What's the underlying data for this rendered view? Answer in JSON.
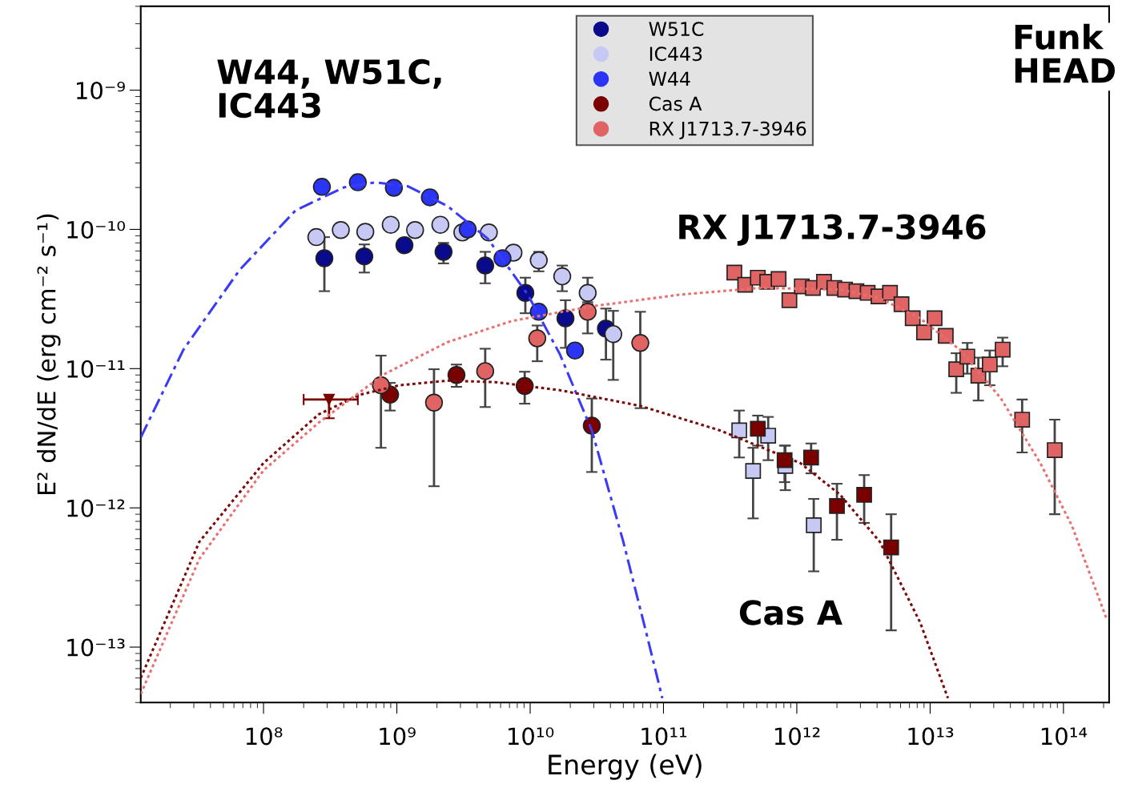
{
  "chart_data": {
    "type": "scatter",
    "xlabel": "Energy (eV)",
    "ylabel": "E² dN/dE (erg cm⁻² s⁻¹)",
    "log": "xy",
    "grid": false,
    "legend": "top",
    "xlim": [
      12000000.0,
      220000000000000.0
    ],
    "ylim": [
      4e-14,
      4e-09
    ],
    "xticks": [
      {
        "value": 100000000.0,
        "label": "10⁸"
      },
      {
        "value": 1000000000.0,
        "label": "10⁹"
      },
      {
        "value": 10000000000.0,
        "label": "10¹⁰"
      },
      {
        "value": 100000000000.0,
        "label": "10¹¹"
      },
      {
        "value": 1000000000000.0,
        "label": "10¹²"
      },
      {
        "value": 10000000000000.0,
        "label": "10¹³"
      },
      {
        "value": 100000000000000.0,
        "label": "10¹⁴"
      }
    ],
    "yticks": [
      {
        "value": 1e-13,
        "label": "10⁻¹³"
      },
      {
        "value": 1e-12,
        "label": "10⁻¹²"
      },
      {
        "value": 1e-11,
        "label": "10⁻¹¹"
      },
      {
        "value": 1e-10,
        "label": "10⁻¹⁰"
      },
      {
        "value": 1e-09,
        "label": "10⁻⁹"
      }
    ],
    "annotations": [
      "W44, W51C,\nIC443",
      "RX J1713.7-3946",
      "Cas A",
      "Funk\nHEAD"
    ],
    "series": [
      {
        "type": "line",
        "color": "#3b3bf5",
        "line_style": "dashed",
        "x": [
          12000000.0,
          25000000.0,
          66000000.0,
          174000000.0,
          400000000.0,
          690000000.0,
          1210000000.0,
          2400000000.0,
          4800000000.0,
          9600000000.0,
          16700000000.0,
          29000000000.0,
          50000000000.0,
          76000000000.0,
          98000000000.0
        ],
        "values": [
          3.2e-12,
          1.36e-11,
          5.1e-11,
          1.37e-10,
          2e-10,
          2.18e-10,
          2.04e-10,
          1.47e-10,
          8.6e-11,
          3.4e-11,
          1.27e-11,
          3.6e-12,
          5.7e-13,
          1.16e-13,
          4.3e-14
        ]
      },
      {
        "type": "line",
        "color": "#7a0a0a",
        "line_style": "dotted",
        "x": [
          12000000.0,
          33000000.0,
          100000000.0,
          260000000.0,
          530000000.0,
          1050000000.0,
          2400000000.0,
          5500000000.0,
          16700000000.0,
          67000000000.0,
          265000000000.0,
          1060000000000.0,
          2100000000000.0,
          4200000000000.0,
          8400000000000.0,
          13600000000000.0
        ],
        "values": [
          6e-14,
          5.7e-13,
          2.1e-12,
          4.7e-12,
          6.5e-12,
          7.6e-12,
          8.2e-12,
          8e-12,
          7e-12,
          5.4e-12,
          3.6e-12,
          2.1e-12,
          1.25e-12,
          5.7e-13,
          1.51e-13,
          4.3e-14
        ]
      },
      {
        "type": "line",
        "color": "#e87070",
        "line_style": "dotted",
        "x": [
          12000000.0,
          33000000.0,
          100000000.0,
          260000000.0,
          800000000.0,
          2400000000.0,
          7300000000.0,
          29000000000.0,
          133000000000.0,
          530000000000.0,
          2100000000000.0,
          4200000000000.0,
          8400000000000.0,
          16800000000000.0,
          34000000000000.0,
          67000000000000.0,
          116000000000000.0,
          210000000000000.0
        ],
        "values": [
          4.6e-14,
          4.3e-13,
          1.86e-12,
          4.1e-12,
          9.1e-12,
          1.55e-11,
          2.2e-11,
          2.8e-11,
          3.4e-11,
          3.8e-11,
          3.7e-11,
          3.2e-11,
          2.3e-11,
          1.36e-11,
          6.1e-12,
          2.1e-12,
          7.4e-13,
          1.61e-13
        ]
      },
      {
        "name": "W51C",
        "color": "#0a0a8c",
        "marker": "circle",
        "x": [
          286000000.0,
          570000000.0,
          1140000000.0,
          2240000000.0,
          4600000000.0,
          9200000000.0,
          18400000000.0,
          37000000000.0
        ],
        "values": [
          6.2e-11,
          6.4e-11,
          7.7e-11,
          6.9e-11,
          5.5e-11,
          3.5e-11,
          2.3e-11,
          1.94e-11
        ],
        "errors": [
          [
            3.6e-11,
            8.8e-11
          ],
          [
            4.9e-11,
            7.8e-11
          ],
          null,
          [
            5.7e-11,
            8e-11
          ],
          [
            4.1e-11,
            6.9e-11
          ],
          [
            2.5e-11,
            4.5e-11
          ],
          [
            1.41e-11,
            3.1e-11
          ],
          [
            1.16e-11,
            2.7e-11
          ]
        ]
      },
      {
        "name": "IC443",
        "color": "#c8c8f5",
        "marker": "circle",
        "x": [
          249000000.0,
          380000000.0,
          580000000.0,
          900000000.0,
          1370000000.0,
          2120000000.0,
          3100000000.0,
          4900000000.0,
          7500000000.0,
          11600000000.0,
          17400000000.0,
          27000000000.0,
          42000000000.0
        ],
        "values": [
          8.8e-11,
          9.9e-11,
          9.6e-11,
          1.08e-10,
          9.9e-11,
          1.08e-10,
          9.5e-11,
          9.5e-11,
          6.8e-11,
          6e-11,
          4.6e-11,
          3.5e-11,
          1.77e-11
        ],
        "errors": [
          null,
          null,
          null,
          null,
          null,
          null,
          null,
          null,
          null,
          [
            5e-11,
            6.9e-11
          ],
          [
            3.6e-11,
            5.5e-11
          ],
          [
            2.9e-11,
            4.5e-11
          ],
          [
            8.3e-12,
            2.6e-11
          ]
        ]
      },
      {
        "name": "W44",
        "color": "#2b35f5",
        "marker": "circle",
        "x": [
          274000000.0,
          510000000.0,
          950000000.0,
          1770000000.0,
          3400000000.0,
          6200000000.0,
          11600000000.0,
          21700000000.0
        ],
        "values": [
          2.02e-10,
          2.18e-10,
          1.99e-10,
          1.7e-10,
          1e-10,
          6.2e-11,
          2.56e-11,
          1.35e-11
        ]
      },
      {
        "name": "Cas A",
        "color": "#7a0000",
        "marker": "circle",
        "x": [
          890000000.0,
          2800000000.0,
          9100000000.0,
          29000000000.0
        ],
        "values": [
          6.5e-12,
          9e-12,
          7.5e-12,
          3.9e-12
        ],
        "errors": [
          [
            5e-12,
            7.9e-12
          ],
          [
            7.4e-12,
            1.07e-11
          ],
          [
            5.6e-12,
            9.5e-12
          ],
          [
            1.81e-12,
            6.1e-12
          ]
        ]
      },
      {
        "name": "RX J1713.7-3946",
        "color": "#e06464",
        "marker": "circle",
        "x": [
          760000000.0,
          1900000000.0,
          4600000000.0,
          11300000000.0,
          27000000000.0,
          67000000000.0
        ],
        "values": [
          7.6e-12,
          5.7e-12,
          9.6e-12,
          1.65e-11,
          2.56e-11,
          1.53e-11
        ],
        "errors": [
          [
            2.7e-12,
            1.24e-11
          ],
          [
            1.43e-12,
            9.9e-12
          ],
          [
            5.3e-12,
            1.39e-11
          ],
          [
            1.13e-11,
            2.04e-11
          ],
          [
            1.79e-11,
            3e-11
          ],
          [
            5.2e-12,
            2.56e-11
          ]
        ]
      },
      {
        "color": "#7a0000",
        "marker": "triangle",
        "x": [
          310000000.0
        ],
        "values": [
          6e-12
        ],
        "xerrors": [
          [
            200000000.0,
            510000000.0
          ]
        ],
        "errors": [
          [
            4.4e-12,
            6e-12
          ]
        ]
      },
      {
        "color": "#c8c8f5",
        "marker": "square",
        "x": [
          370000000000.0,
          470000000000.0,
          610000000000.0,
          820000000000.0,
          1340000000000.0
        ],
        "values": [
          3.6e-12,
          1.84e-12,
          3.3e-12,
          2e-12,
          7.5e-13
        ],
        "errors": [
          [
            2.3e-12,
            5e-12
          ],
          [
            8.4e-13,
            2.7e-12
          ],
          [
            2.2e-12,
            4.5e-12
          ],
          [
            1.34e-12,
            2.8e-12
          ],
          [
            3.5e-13,
            1.16e-12
          ]
        ]
      },
      {
        "color": "#7a0000",
        "marker": "square",
        "x": [
          510000000000.0,
          810000000000.0,
          1280000000000.0,
          2000000000000.0,
          3200000000000.0,
          5100000000000.0
        ],
        "values": [
          3.7e-12,
          2.2e-12,
          2.3e-12,
          1.03e-12,
          1.24e-12,
          5.2e-13
        ],
        "errors": [
          [
            2.8e-12,
            4.6e-12
          ],
          [
            1.53e-12,
            2.8e-12
          ],
          [
            1.77e-12,
            2.9e-12
          ],
          [
            5.9e-13,
            1.49e-12
          ],
          [
            7.8e-13,
            1.72e-12
          ],
          [
            1.32e-13,
            9e-13
          ]
        ]
      },
      {
        "color": "#e06464",
        "marker": "square",
        "x": [
          340000000000.0,
          410000000000.0,
          510000000000.0,
          600000000000.0,
          730000000000.0,
          880000000000.0,
          1090000000000.0,
          1320000000000.0,
          1600000000000.0,
          1910000000000.0,
          2300000000000.0,
          2800000000000.0,
          3400000000000.0,
          4100000000000.0,
          5000000000000.0,
          6100000000000.0,
          7400000000000.0,
          9000000000000.0,
          10800000000000.0,
          13100000000000.0,
          15700000000000.0,
          19000000000000.0,
          23000000000000.0,
          28000000000000.0,
          35000000000000.0,
          49000000000000.0,
          86000000000000.0
        ],
        "values": [
          4.9e-11,
          4e-11,
          4.5e-11,
          4.2e-11,
          4.4e-11,
          3.1e-11,
          3.9e-11,
          3.8e-11,
          4.2e-11,
          3.8e-11,
          3.7e-11,
          3.6e-11,
          3.5e-11,
          3.3e-11,
          3.5e-11,
          2.9e-11,
          2.3e-11,
          1.82e-11,
          2.3e-11,
          1.72e-11,
          9.9e-12,
          1.22e-11,
          8.9e-12,
          1.07e-11,
          1.37e-11,
          4.3e-12,
          2.6e-12
        ],
        "errors": [
          null,
          null,
          null,
          null,
          null,
          null,
          null,
          null,
          null,
          null,
          null,
          null,
          null,
          null,
          null,
          null,
          null,
          null,
          null,
          null,
          [
            6.7e-12,
            1.29e-11
          ],
          [
            9.2e-12,
            1.53e-11
          ],
          [
            5.9e-12,
            1.2e-11
          ],
          [
            7.6e-12,
            1.35e-11
          ],
          [
            1.04e-11,
            1.67e-11
          ],
          [
            2.5e-12,
            6e-12
          ],
          [
            9e-13,
            4.3e-12
          ]
        ]
      }
    ]
  }
}
